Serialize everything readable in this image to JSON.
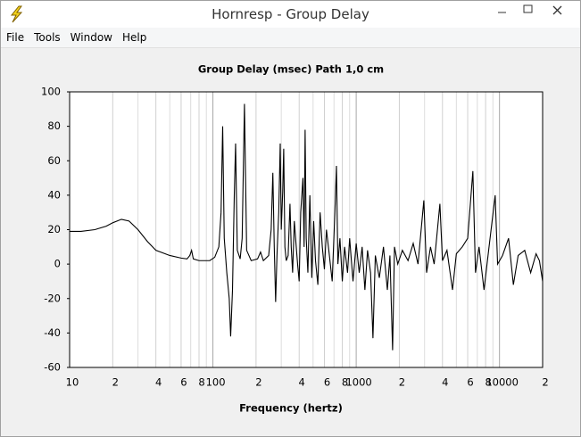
{
  "window": {
    "title": "Hornresp - Group Delay"
  },
  "menu": [
    "File",
    "Tools",
    "Window",
    "Help"
  ],
  "chart_data": {
    "type": "line",
    "title": "Group Delay (msec)   Path 1,0 cm",
    "x_label": "Frequency (hertz)",
    "x_scale": "log",
    "color": "#000000",
    "grid": true,
    "xlim": [
      10,
      20000
    ],
    "ylim": [
      -60,
      100
    ],
    "xticks": [
      10,
      {
        "value": 20,
        "label": "2"
      },
      {
        "value": 40,
        "label": "4"
      },
      {
        "value": 60,
        "label": "6"
      },
      {
        "value": 80,
        "label": "8"
      },
      100,
      {
        "value": 200,
        "label": "2"
      },
      {
        "value": 400,
        "label": "4"
      },
      {
        "value": 600,
        "label": "6"
      },
      {
        "value": 800,
        "label": "8"
      },
      1000,
      {
        "value": 2000,
        "label": "2"
      },
      {
        "value": 4000,
        "label": "4"
      },
      {
        "value": 6000,
        "label": "6"
      },
      {
        "value": 8000,
        "label": "8"
      },
      10000,
      {
        "value": 20000,
        "label": "2"
      }
    ],
    "xminor": [
      30,
      50,
      70,
      90,
      300,
      500,
      700,
      900,
      3000,
      5000,
      7000,
      9000
    ],
    "yticks": [
      -60,
      -40,
      -20,
      0,
      20,
      40,
      60,
      80,
      100
    ],
    "x": [
      10,
      12,
      15,
      18,
      20,
      23,
      26,
      30,
      35,
      40,
      50,
      60,
      66,
      69,
      71,
      73,
      80,
      95,
      103,
      110,
      114,
      117,
      120,
      125,
      130,
      133,
      137,
      141,
      144,
      148,
      155,
      160,
      166,
      172,
      185,
      205,
      215,
      225,
      245,
      255,
      262,
      268,
      274,
      280,
      288,
      295,
      300,
      307,
      312,
      318,
      325,
      335,
      345,
      352,
      360,
      370,
      380,
      390,
      400,
      410,
      425,
      433,
      440,
      448,
      460,
      475,
      490,
      505,
      520,
      540,
      560,
      580,
      600,
      620,
      650,
      680,
      710,
      728,
      745,
      770,
      800,
      830,
      870,
      900,
      950,
      1000,
      1050,
      1100,
      1150,
      1200,
      1260,
      1309,
      1360,
      1450,
      1550,
      1650,
      1720,
      1795,
      1850,
      1950,
      2100,
      2300,
      2500,
      2700,
      2965,
      3100,
      3300,
      3500,
      3838,
      4000,
      4300,
      4700,
      5000,
      5500,
      6000,
      6520,
      6800,
      7200,
      7800,
      8400,
      9330,
      9700,
      10500,
      11570,
      12500,
      13500,
      15000,
      16500,
      18000,
      19000,
      20000
    ],
    "values": [
      19,
      19,
      20,
      22,
      24,
      26,
      25,
      20,
      13,
      8,
      5,
      3.5,
      3,
      5,
      8,
      3,
      2,
      2,
      4,
      10,
      30,
      80,
      15,
      -5,
      -20,
      -42,
      -15,
      40,
      70,
      8,
      3,
      15,
      93,
      8,
      2,
      3,
      7,
      2,
      5,
      20,
      53,
      10,
      -22,
      5,
      30,
      70,
      20,
      42,
      67,
      10,
      2,
      5,
      35,
      10,
      -5,
      25,
      12,
      0,
      -10,
      30,
      50,
      10,
      78,
      15,
      -5,
      40,
      -8,
      25,
      2,
      -12,
      30,
      10,
      -3,
      20,
      5,
      -10,
      30,
      57,
      0,
      15,
      -10,
      10,
      -5,
      15,
      -10,
      12,
      -5,
      10,
      -15,
      8,
      -5,
      -43,
      5,
      -8,
      10,
      -15,
      5,
      -50,
      10,
      0,
      8,
      2,
      12,
      0,
      37,
      -5,
      10,
      0,
      35,
      2,
      8,
      -15,
      6,
      10,
      15,
      54,
      -5,
      10,
      -15,
      8,
      40,
      0,
      5,
      15,
      -12,
      5,
      8,
      -5,
      6,
      2,
      -10
    ]
  }
}
